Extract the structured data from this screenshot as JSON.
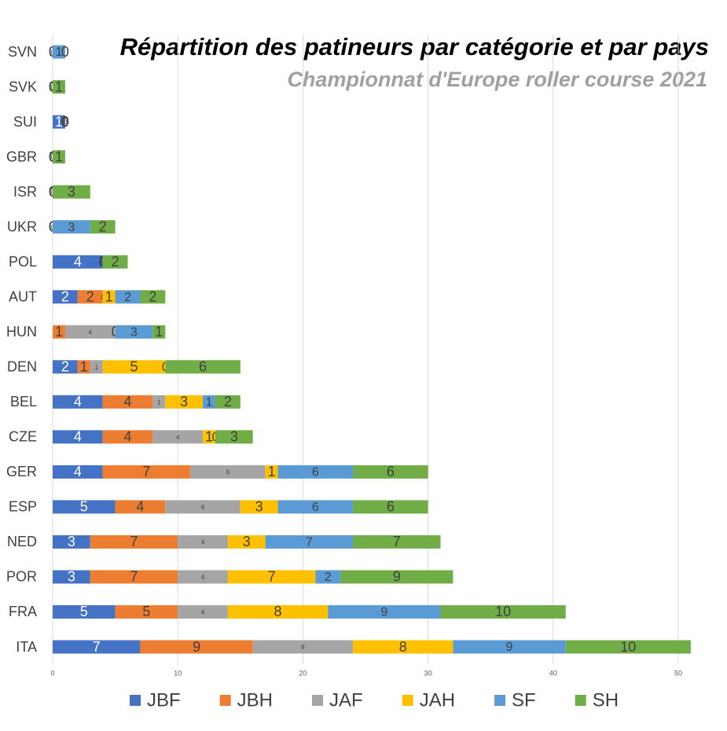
{
  "chart_data": {
    "type": "stacked-bar-horizontal",
    "title": "Répartition des patineurs par catégorie et par pays",
    "subtitle": "Championnat d'Europe roller course 2021",
    "categories": [
      "SVN",
      "SVK",
      "SUI",
      "GBR",
      "ISR",
      "UKR",
      "POL",
      "AUT",
      "HUN",
      "DEN",
      "BEL",
      "CZE",
      "GER",
      "ESP",
      "NED",
      "POR",
      "FRA",
      "ITA"
    ],
    "series": [
      {
        "name": "JBF",
        "color": "#4472c4",
        "values": [
          0,
          0,
          1,
          0,
          0,
          0,
          4,
          2,
          0,
          2,
          4,
          4,
          4,
          5,
          3,
          3,
          5,
          7
        ]
      },
      {
        "name": "JBH",
        "color": "#ed7d31",
        "values": [
          0,
          0,
          0,
          0,
          0,
          0,
          0,
          2,
          1,
          1,
          4,
          4,
          7,
          4,
          7,
          7,
          5,
          9
        ]
      },
      {
        "name": "JAF",
        "color": "#a5a5a5",
        "values": [
          0,
          0,
          0,
          0,
          0,
          0,
          0,
          0,
          4,
          1,
          1,
          4,
          6,
          6,
          4,
          4,
          4,
          8
        ]
      },
      {
        "name": "JAH",
        "color": "#ffc000",
        "values": [
          0,
          0,
          0,
          0,
          0,
          0,
          0,
          1,
          0,
          5,
          3,
          1,
          1,
          3,
          3,
          7,
          8,
          8
        ]
      },
      {
        "name": "SF",
        "color": "#5b9bd5",
        "values": [
          1,
          0,
          0,
          0,
          0,
          3,
          0,
          2,
          3,
          0,
          1,
          0,
          6,
          6,
          7,
          2,
          9,
          9
        ]
      },
      {
        "name": "SH",
        "color": "#70ad47",
        "values": [
          0,
          1,
          0,
          1,
          3,
          2,
          2,
          2,
          1,
          6,
          2,
          3,
          6,
          6,
          7,
          9,
          10,
          10
        ]
      }
    ],
    "xlim": [
      0,
      52
    ],
    "xticks": [
      0,
      10,
      20,
      30,
      40,
      50
    ],
    "grid": true,
    "legend": "bottom"
  }
}
